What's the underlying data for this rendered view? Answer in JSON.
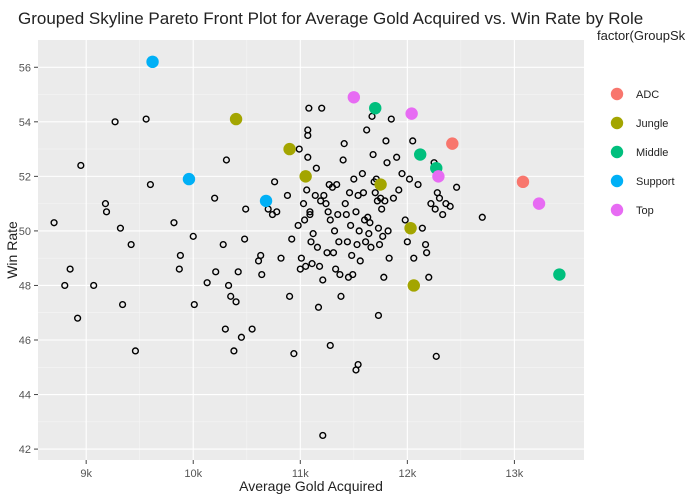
{
  "chart_data": {
    "type": "scatter",
    "title": "Grouped Skyline Pareto Front Plot for Average Gold Acquired vs. Win Rate by Role",
    "xlabel": "Average Gold Acquired",
    "ylabel": "Win Rate",
    "xlim": [
      8550,
      13650
    ],
    "ylim": [
      41.6,
      57.0
    ],
    "x_ticks": [
      9000,
      10000,
      11000,
      12000,
      13000
    ],
    "x_tick_labels": [
      "9k",
      "10k",
      "11k",
      "12k",
      "13k"
    ],
    "y_ticks": [
      42,
      44,
      46,
      48,
      50,
      52,
      54,
      56
    ],
    "y_tick_labels": [
      "42",
      "44",
      "46",
      "48",
      "50",
      "52",
      "54",
      "56"
    ],
    "grid": true,
    "legend": {
      "title": "factor(GroupSk",
      "position": "right",
      "entries": [
        {
          "name": "ADC",
          "color": "#F8766D"
        },
        {
          "name": "Jungle",
          "color": "#A3A500"
        },
        {
          "name": "Middle",
          "color": "#00BF7D"
        },
        {
          "name": "Support",
          "color": "#00B0F6"
        },
        {
          "name": "Top",
          "color": "#E76BF3"
        }
      ]
    },
    "series": [
      {
        "name": "ADC",
        "color": "#F8766D",
        "points": [
          [
            12420,
            53.2
          ],
          [
            13080,
            51.8
          ]
        ]
      },
      {
        "name": "Jungle",
        "color": "#A3A500",
        "points": [
          [
            10400,
            54.1
          ],
          [
            10900,
            53.0
          ],
          [
            11050,
            52.0
          ],
          [
            11750,
            51.7
          ],
          [
            12030,
            50.1
          ],
          [
            12060,
            48.0
          ]
        ]
      },
      {
        "name": "Middle",
        "color": "#00BF7D",
        "points": [
          [
            11700,
            54.5
          ],
          [
            12120,
            52.8
          ],
          [
            12270,
            52.3
          ],
          [
            13420,
            48.4
          ]
        ]
      },
      {
        "name": "Support",
        "color": "#00B0F6",
        "points": [
          [
            9620,
            56.2
          ],
          [
            9960,
            51.9
          ],
          [
            10680,
            51.1
          ]
        ]
      },
      {
        "name": "Top",
        "color": "#E76BF3",
        "points": [
          [
            11500,
            54.9
          ],
          [
            12040,
            54.3
          ],
          [
            12290,
            52.0
          ],
          [
            13230,
            51.0
          ]
        ]
      },
      {
        "name": "",
        "color": "#000000",
        "hollow": true,
        "points": [
          [
            8700,
            50.3
          ],
          [
            8800,
            48.0
          ],
          [
            8850,
            48.6
          ],
          [
            8920,
            46.8
          ],
          [
            8950,
            52.4
          ],
          [
            9070,
            48.0
          ],
          [
            9180,
            51.0
          ],
          [
            9190,
            50.7
          ],
          [
            9270,
            54.0
          ],
          [
            9320,
            50.1
          ],
          [
            9340,
            47.3
          ],
          [
            9420,
            49.5
          ],
          [
            9460,
            45.6
          ],
          [
            9560,
            54.1
          ],
          [
            9600,
            51.7
          ],
          [
            9820,
            50.3
          ],
          [
            9870,
            48.6
          ],
          [
            9880,
            49.1
          ],
          [
            10000,
            49.8
          ],
          [
            10010,
            47.3
          ],
          [
            10130,
            48.1
          ],
          [
            10200,
            51.2
          ],
          [
            10210,
            48.5
          ],
          [
            10280,
            49.5
          ],
          [
            10300,
            46.4
          ],
          [
            10310,
            52.6
          ],
          [
            10330,
            48.0
          ],
          [
            10350,
            47.6
          ],
          [
            10380,
            45.6
          ],
          [
            10400,
            47.4
          ],
          [
            10420,
            48.5
          ],
          [
            10450,
            46.1
          ],
          [
            10480,
            49.7
          ],
          [
            10490,
            50.8
          ],
          [
            10550,
            46.4
          ],
          [
            10610,
            48.9
          ],
          [
            10640,
            48.4
          ],
          [
            10630,
            49.1
          ],
          [
            10700,
            50.8
          ],
          [
            10740,
            50.6
          ],
          [
            10760,
            51.8
          ],
          [
            10780,
            50.7
          ],
          [
            10820,
            49.0
          ],
          [
            10880,
            51.3
          ],
          [
            10900,
            47.6
          ],
          [
            10920,
            49.7
          ],
          [
            10940,
            45.5
          ],
          [
            10980,
            50.2
          ],
          [
            10990,
            53.0
          ],
          [
            11000,
            48.6
          ],
          [
            11010,
            49.0
          ],
          [
            11030,
            51.0
          ],
          [
            11040,
            50.4
          ],
          [
            11050,
            48.7
          ],
          [
            11060,
            51.5
          ],
          [
            11070,
            53.7
          ],
          [
            11070,
            53.5
          ],
          [
            11070,
            52.7
          ],
          [
            11080,
            54.5
          ],
          [
            11090,
            50.7
          ],
          [
            11090,
            50.6
          ],
          [
            11100,
            49.6
          ],
          [
            11110,
            48.8
          ],
          [
            11120,
            49.9
          ],
          [
            11140,
            51.3
          ],
          [
            11150,
            52.3
          ],
          [
            11160,
            49.4
          ],
          [
            11170,
            47.2
          ],
          [
            11180,
            48.7
          ],
          [
            11190,
            51.1
          ],
          [
            11200,
            54.5
          ],
          [
            11210,
            48.2
          ],
          [
            11220,
            51.3
          ],
          [
            11240,
            51.0
          ],
          [
            11250,
            49.2
          ],
          [
            11260,
            50.7
          ],
          [
            11270,
            51.7
          ],
          [
            11280,
            50.4
          ],
          [
            11300,
            51.6
          ],
          [
            11310,
            49.2
          ],
          [
            11320,
            50.0
          ],
          [
            11330,
            48.6
          ],
          [
            11340,
            51.7
          ],
          [
            11350,
            50.6
          ],
          [
            11360,
            49.6
          ],
          [
            11370,
            48.4
          ],
          [
            11380,
            47.6
          ],
          [
            11400,
            52.6
          ],
          [
            11410,
            53.2
          ],
          [
            11420,
            51.0
          ],
          [
            11430,
            50.6
          ],
          [
            11440,
            49.6
          ],
          [
            11450,
            48.3
          ],
          [
            11460,
            51.4
          ],
          [
            11470,
            50.2
          ],
          [
            11480,
            49.1
          ],
          [
            11490,
            48.4
          ],
          [
            11500,
            51.9
          ],
          [
            11520,
            50.7
          ],
          [
            11530,
            49.5
          ],
          [
            11540,
            51.3
          ],
          [
            11550,
            50.0
          ],
          [
            11560,
            48.9
          ],
          [
            11580,
            52.1
          ],
          [
            11590,
            51.4
          ],
          [
            11600,
            50.4
          ],
          [
            11610,
            49.6
          ],
          [
            11620,
            53.7
          ],
          [
            11630,
            50.5
          ],
          [
            11640,
            49.9
          ],
          [
            11650,
            50.3
          ],
          [
            11660,
            49.4
          ],
          [
            11670,
            54.2
          ],
          [
            11680,
            52.8
          ],
          [
            11690,
            51.8
          ],
          [
            11700,
            51.4
          ],
          [
            11710,
            51.9
          ],
          [
            11720,
            51.1
          ],
          [
            11730,
            50.1
          ],
          [
            11740,
            49.5
          ],
          [
            11750,
            51.2
          ],
          [
            11760,
            50.8
          ],
          [
            11770,
            49.8
          ],
          [
            11780,
            48.3
          ],
          [
            11790,
            51.1
          ],
          [
            11800,
            53.3
          ],
          [
            11810,
            52.5
          ],
          [
            11820,
            50.0
          ],
          [
            11830,
            49.0
          ],
          [
            11850,
            54.1
          ],
          [
            11870,
            51.2
          ],
          [
            11900,
            52.7
          ],
          [
            11920,
            51.5
          ],
          [
            11950,
            52.1
          ],
          [
            11980,
            50.4
          ],
          [
            12000,
            49.6
          ],
          [
            12020,
            51.9
          ],
          [
            12050,
            53.3
          ],
          [
            12060,
            49.0
          ],
          [
            12100,
            51.7
          ],
          [
            12140,
            50.1
          ],
          [
            12170,
            49.5
          ],
          [
            12180,
            49.2
          ],
          [
            12200,
            48.3
          ],
          [
            12220,
            51.0
          ],
          [
            12250,
            52.5
          ],
          [
            12260,
            50.8
          ],
          [
            12280,
            51.4
          ],
          [
            12300,
            51.2
          ],
          [
            12330,
            50.6
          ],
          [
            12360,
            51.0
          ],
          [
            12400,
            50.9
          ],
          [
            12460,
            51.6
          ],
          [
            12700,
            50.5
          ],
          [
            11280,
            45.8
          ],
          [
            11210,
            42.5
          ],
          [
            11520,
            44.9
          ],
          [
            11540,
            45.1
          ],
          [
            12270,
            45.4
          ],
          [
            11730,
            46.9
          ]
        ]
      }
    ]
  }
}
